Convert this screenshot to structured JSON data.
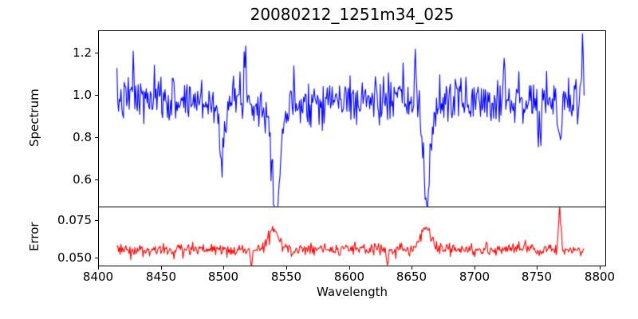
{
  "figure": {
    "title": "20080212_1251m34_025",
    "background": "#ffffff"
  },
  "xaxis": {
    "label": "Wavelength",
    "xlim": [
      8400,
      8805
    ],
    "ticks": [
      8400,
      8450,
      8500,
      8550,
      8600,
      8650,
      8700,
      8750,
      8800
    ],
    "tick_labels": [
      "8400",
      "8450",
      "8500",
      "8550",
      "8600",
      "8650",
      "8700",
      "8750",
      "8800"
    ]
  },
  "panels": [
    {
      "name": "spectrum",
      "ylabel": "Spectrum",
      "ylim": [
        0.472,
        1.305
      ],
      "yticks": [
        1.2,
        1.0,
        0.8,
        0.6
      ],
      "ytick_labels": [
        "1.2",
        "1.0",
        "0.8",
        "0.6"
      ],
      "line_color": "#0000ff"
    },
    {
      "name": "error",
      "ylabel": "Error",
      "ylim": [
        0.0447,
        0.0835
      ],
      "yticks": [
        0.075,
        0.05
      ],
      "ytick_labels": [
        "0.075",
        "0.050"
      ],
      "line_color": "#ff0000"
    }
  ],
  "chart_data": [
    {
      "type": "line",
      "series_name": "spectrum",
      "title": "20080212_1251m34_025",
      "xlabel": "Wavelength",
      "ylabel": "Spectrum",
      "color": "#0000ff",
      "x_start": 8415,
      "x_end": 8788,
      "x_step": 0.65,
      "xlim": [
        8400,
        8805
      ],
      "ylim": [
        0.472,
        1.305
      ],
      "baseline": 0.975,
      "noise_sigma": 0.055,
      "seed": 7,
      "absorption_lines": [
        {
          "center": 8498,
          "depth": 0.22,
          "sigma": 1.6
        },
        {
          "center": 8498,
          "depth": 0.05,
          "sigma": 4.0
        },
        {
          "center": 8542,
          "depth": 0.44,
          "sigma": 2.4
        },
        {
          "center": 8542,
          "depth": 0.13,
          "sigma": 7.0
        },
        {
          "center": 8662,
          "depth": 0.4,
          "sigma": 2.2
        },
        {
          "center": 8662,
          "depth": 0.1,
          "sigma": 6.0
        },
        {
          "center": 8752,
          "depth": 0.18,
          "sigma": 1.5
        },
        {
          "center": 8768,
          "depth": 0.22,
          "sigma": 1.2
        }
      ],
      "emission_spikes": [
        {
          "center": 8428,
          "height": 0.16,
          "sigma": 0.7
        },
        {
          "center": 8517,
          "height": 0.27,
          "sigma": 0.8
        },
        {
          "center": 8653,
          "height": 0.2,
          "sigma": 0.7
        },
        {
          "center": 8724,
          "height": 0.22,
          "sigma": 0.7
        },
        {
          "center": 8786,
          "height": 0.27,
          "sigma": 0.9
        }
      ]
    },
    {
      "type": "line",
      "series_name": "error",
      "xlabel": "Wavelength",
      "ylabel": "Error",
      "color": "#ff0000",
      "x_start": 8415,
      "x_end": 8788,
      "x_step": 0.65,
      "xlim": [
        8400,
        8805
      ],
      "ylim": [
        0.0447,
        0.0835
      ],
      "baseline": 0.0555,
      "noise_sigma": 0.0022,
      "seed": 3,
      "bumps": [
        {
          "center": 8540,
          "height": 0.013,
          "sigma": 4.0
        },
        {
          "center": 8661,
          "height": 0.015,
          "sigma": 4.0
        },
        {
          "center": 8768,
          "height": 0.026,
          "sigma": 0.9
        },
        {
          "center": 8522,
          "height": -0.01,
          "sigma": 0.8
        },
        {
          "center": 8631,
          "height": -0.0095,
          "sigma": 0.8
        }
      ]
    }
  ]
}
